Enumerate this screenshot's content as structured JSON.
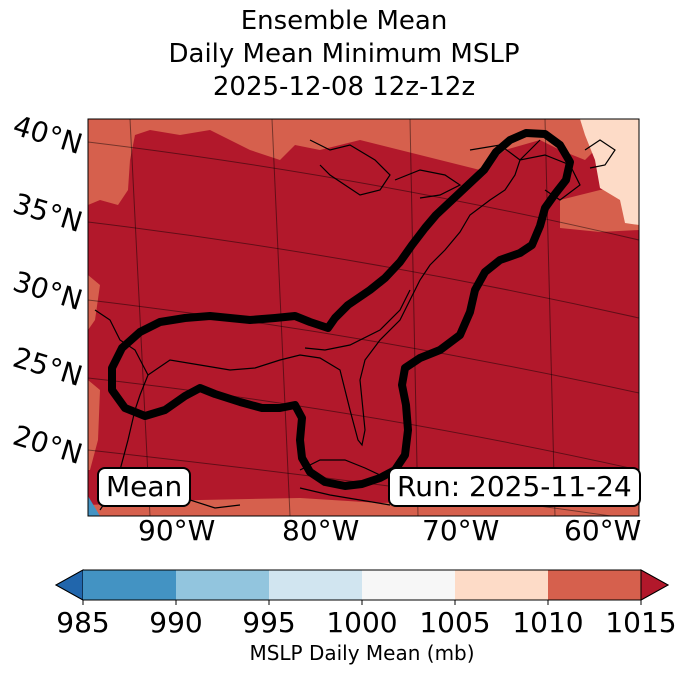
{
  "title": {
    "line1": "Ensemble Mean",
    "line2": "Daily Mean Minimum MSLP",
    "line3": "2025-12-08 12z-12z"
  },
  "map": {
    "lat_labels": [
      "40°N",
      "35°N",
      "30°N",
      "25°N",
      "20°N"
    ],
    "lon_labels": [
      "90°W",
      "80°W",
      "70°W",
      "60°W"
    ],
    "left_box": "Mean",
    "right_box": "Run: 2025-11-24",
    "colors": {
      "dark_red": "#b2182b",
      "mid_red": "#d6604d",
      "light_pink": "#fddbc7",
      "white": "#f7f7f7",
      "light_blue": "#d1e5f0",
      "mid_blue": "#92c5de",
      "dark_blue": "#4393c3",
      "darkest_blue": "#2166ac"
    }
  },
  "colorbar": {
    "ticks": [
      "985",
      "990",
      "995",
      "1000",
      "1005",
      "1010",
      "1015"
    ],
    "label": "MSLP Daily Mean (mb)",
    "bin_colors": [
      "#4393c3",
      "#92c5de",
      "#d1e5f0",
      "#f7f7f7",
      "#fddbc7",
      "#d6604d"
    ],
    "under_color": "#2166ac",
    "over_color": "#b2182b"
  }
}
